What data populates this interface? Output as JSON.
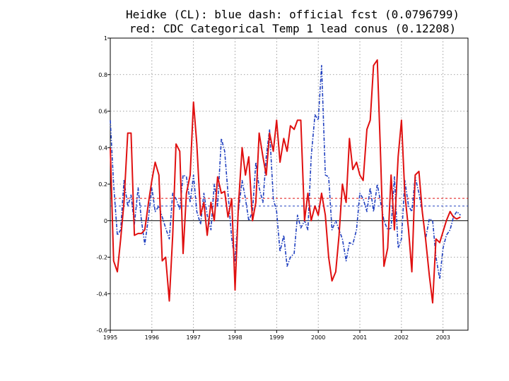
{
  "chart_data": {
    "type": "line",
    "title_line1": "Heidke (CL): blue dash: official fcst (0.0796799)",
    "title_line2": "red: CDC Categorical Temp 1 lead conus (0.12208)",
    "xlabel": "",
    "ylabel": "",
    "xlim": [
      1995.0,
      2003.6
    ],
    "ylim": [
      -0.6,
      1.0
    ],
    "grid": true,
    "x_tick_labels": [
      "1995",
      "1996",
      "1997",
      "1998",
      "1999",
      "2000",
      "2001",
      "2002",
      "2003"
    ],
    "x_tick_values": [
      1995,
      1996,
      1997,
      1998,
      1999,
      2000,
      2001,
      2002,
      2003
    ],
    "y_tick_labels": [
      "1",
      "0.8",
      "0.6",
      "0.4",
      "0.2",
      "0",
      "-0.2",
      "-0.4",
      "-0.6"
    ],
    "y_tick_values": [
      1.0,
      0.8,
      0.6,
      0.4,
      0.2,
      0.0,
      -0.2,
      -0.4,
      -0.6
    ],
    "reference_lines": [
      {
        "name": "blue-mean",
        "value": 0.08,
        "color": "#1f3fbf"
      },
      {
        "name": "red-mean",
        "value": 0.122,
        "color": "#e01010"
      }
    ],
    "series": [
      {
        "name": "official fcst",
        "color": "#1f3fbf",
        "dash": true,
        "x": [
          1995.0,
          1995.08,
          1995.17,
          1995.25,
          1995.33,
          1995.42,
          1995.5,
          1995.58,
          1995.67,
          1995.75,
          1995.83,
          1995.92,
          1996.0,
          1996.08,
          1996.17,
          1996.25,
          1996.33,
          1996.42,
          1996.5,
          1996.58,
          1996.67,
          1996.75,
          1996.83,
          1996.92,
          1997.0,
          1997.08,
          1997.17,
          1997.25,
          1997.33,
          1997.42,
          1997.5,
          1997.58,
          1997.67,
          1997.75,
          1997.83,
          1997.92,
          1998.0,
          1998.08,
          1998.17,
          1998.25,
          1998.33,
          1998.42,
          1998.5,
          1998.58,
          1998.67,
          1998.75,
          1998.83,
          1998.92,
          1999.0,
          1999.08,
          1999.17,
          1999.25,
          1999.33,
          1999.42,
          1999.5,
          1999.58,
          1999.67,
          1999.75,
          1999.83,
          1999.92,
          2000.0,
          2000.08,
          2000.17,
          2000.25,
          2000.33,
          2000.42,
          2000.5,
          2000.58,
          2000.67,
          2000.75,
          2000.83,
          2000.92,
          2001.0,
          2001.08,
          2001.17,
          2001.25,
          2001.33,
          2001.42,
          2001.5,
          2001.58,
          2001.67,
          2001.75,
          2001.83,
          2001.92,
          2002.0,
          2002.08,
          2002.17,
          2002.25,
          2002.33,
          2002.42,
          2002.5,
          2002.58,
          2002.67,
          2002.75,
          2002.83,
          2002.92,
          2003.0,
          2003.08,
          2003.17,
          2003.25,
          2003.33,
          2003.42
        ],
        "y": [
          0.55,
          0.2,
          -0.08,
          -0.05,
          0.22,
          0.08,
          0.14,
          -0.02,
          0.18,
          0.0,
          -0.13,
          0.02,
          0.18,
          0.05,
          0.08,
          0.02,
          -0.04,
          -0.1,
          0.15,
          0.12,
          0.06,
          0.25,
          0.24,
          0.1,
          0.25,
          0.05,
          -0.02,
          0.15,
          0.03,
          -0.05,
          0.2,
          0.08,
          0.45,
          0.38,
          0.15,
          -0.1,
          -0.22,
          0.05,
          0.22,
          0.12,
          0.0,
          0.05,
          0.32,
          0.18,
          0.1,
          0.35,
          0.5,
          0.12,
          0.05,
          -0.17,
          -0.08,
          -0.25,
          -0.2,
          -0.18,
          0.03,
          -0.04,
          0.0,
          -0.05,
          0.35,
          0.58,
          0.55,
          0.85,
          0.25,
          0.24,
          -0.05,
          0.0,
          -0.05,
          -0.1,
          -0.22,
          -0.12,
          -0.13,
          -0.05,
          0.15,
          0.12,
          0.05,
          0.18,
          0.05,
          0.2,
          0.1,
          0.0,
          -0.05,
          -0.04,
          0.24,
          -0.15,
          -0.1,
          0.22,
          0.08,
          0.05,
          0.24,
          0.15,
          0.05,
          -0.1,
          0.01,
          0.0,
          -0.2,
          -0.32,
          -0.15,
          -0.08,
          -0.05,
          0.02,
          0.05,
          0.03
        ]
      },
      {
        "name": "CDC Categorical Temp 1 lead conus",
        "color": "#e01010",
        "dash": false,
        "x": [
          1995.0,
          1995.08,
          1995.17,
          1995.25,
          1995.33,
          1995.42,
          1995.5,
          1995.58,
          1995.67,
          1995.75,
          1995.83,
          1995.92,
          1996.0,
          1996.08,
          1996.17,
          1996.25,
          1996.33,
          1996.42,
          1996.5,
          1996.58,
          1996.67,
          1996.75,
          1996.83,
          1996.92,
          1997.0,
          1997.08,
          1997.17,
          1997.25,
          1997.33,
          1997.42,
          1997.5,
          1997.58,
          1997.67,
          1997.75,
          1997.83,
          1997.92,
          1998.0,
          1998.08,
          1998.17,
          1998.25,
          1998.33,
          1998.42,
          1998.5,
          1998.58,
          1998.67,
          1998.75,
          1998.83,
          1998.92,
          1999.0,
          1999.08,
          1999.17,
          1999.25,
          1999.33,
          1999.42,
          1999.5,
          1999.58,
          1999.67,
          1999.75,
          1999.83,
          1999.92,
          2000.0,
          2000.08,
          2000.17,
          2000.25,
          2000.33,
          2000.42,
          2000.5,
          2000.58,
          2000.67,
          2000.75,
          2000.83,
          2000.92,
          2001.0,
          2001.08,
          2001.17,
          2001.25,
          2001.33,
          2001.42,
          2001.5,
          2001.58,
          2001.67,
          2001.75,
          2001.83,
          2001.92,
          2002.0,
          2002.08,
          2002.17,
          2002.25,
          2002.33,
          2002.42,
          2002.5,
          2002.58,
          2002.67,
          2002.75,
          2002.83,
          2002.92,
          2003.0,
          2003.08,
          2003.17,
          2003.25,
          2003.33,
          2003.42
        ],
        "y": [
          0.4,
          -0.22,
          -0.28,
          -0.1,
          0.1,
          0.48,
          0.48,
          -0.08,
          -0.07,
          -0.07,
          -0.05,
          0.1,
          0.22,
          0.32,
          0.25,
          -0.22,
          -0.2,
          -0.44,
          -0.08,
          0.42,
          0.38,
          -0.18,
          0.15,
          0.25,
          0.65,
          0.42,
          0.03,
          0.1,
          -0.08,
          0.1,
          0.0,
          0.24,
          0.15,
          0.16,
          0.02,
          0.12,
          -0.38,
          0.08,
          0.4,
          0.25,
          0.35,
          0.0,
          0.1,
          0.48,
          0.35,
          0.25,
          0.48,
          0.38,
          0.55,
          0.32,
          0.45,
          0.38,
          0.52,
          0.5,
          0.55,
          0.55,
          0.0,
          0.15,
          0.0,
          0.08,
          0.03,
          0.15,
          0.03,
          -0.2,
          -0.33,
          -0.28,
          -0.08,
          0.2,
          0.1,
          0.45,
          0.28,
          0.32,
          0.25,
          0.22,
          0.5,
          0.55,
          0.85,
          0.88,
          0.35,
          -0.25,
          -0.15,
          0.25,
          -0.05,
          0.35,
          0.55,
          0.15,
          -0.05,
          -0.28,
          0.25,
          0.27,
          0.05,
          -0.1,
          -0.3,
          -0.45,
          -0.1,
          -0.12,
          -0.06,
          0.0,
          0.05,
          0.02,
          0.01,
          0.02
        ]
      }
    ]
  }
}
